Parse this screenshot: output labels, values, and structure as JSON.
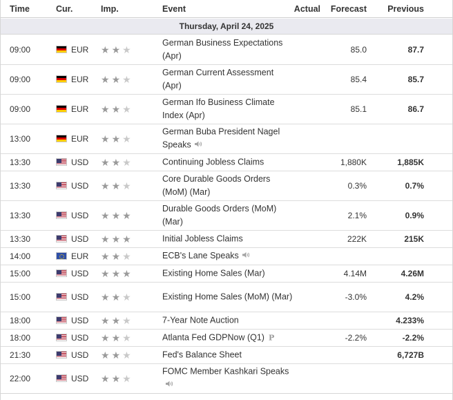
{
  "headers": {
    "time": "Time",
    "cur": "Cur.",
    "imp": "Imp.",
    "event": "Event",
    "actual": "Actual",
    "forecast": "Forecast",
    "previous": "Previous"
  },
  "date_label": "Thursday, April 24, 2025",
  "star_glyph": "★",
  "rows": [
    {
      "time": "09:00",
      "flag": "germany-flag-icon",
      "cur": "EUR",
      "importance": 2,
      "event": "German Business Expectations (Apr)",
      "actual": "",
      "forecast": "85.0",
      "previous": "87.7"
    },
    {
      "time": "09:00",
      "flag": "germany-flag-icon",
      "cur": "EUR",
      "importance": 2,
      "event": "German Current Assessment (Apr)",
      "actual": "",
      "forecast": "85.4",
      "previous": "85.7"
    },
    {
      "time": "09:00",
      "flag": "germany-flag-icon",
      "cur": "EUR",
      "importance": 2,
      "event": "German Ifo Business Climate Index (Apr)",
      "actual": "",
      "forecast": "85.1",
      "previous": "86.7"
    },
    {
      "time": "13:00",
      "flag": "germany-flag-icon",
      "cur": "EUR",
      "importance": 2,
      "event": "German Buba President Nagel Speaks",
      "event_icon": "speaker-icon",
      "actual": "",
      "forecast": "",
      "previous": ""
    },
    {
      "time": "13:30",
      "flag": "usa-flag-icon",
      "cur": "USD",
      "importance": 2,
      "event": "Continuing Jobless Claims",
      "actual": "",
      "forecast": "1,880K",
      "previous": "1,885K"
    },
    {
      "time": "13:30",
      "flag": "usa-flag-icon",
      "cur": "USD",
      "importance": 2,
      "event": "Core Durable Goods Orders (MoM) (Mar)",
      "actual": "",
      "forecast": "0.3%",
      "previous": "0.7%"
    },
    {
      "time": "13:30",
      "flag": "usa-flag-icon",
      "cur": "USD",
      "importance": 3,
      "event": "Durable Goods Orders (MoM) (Mar)",
      "actual": "",
      "forecast": "2.1%",
      "previous": "0.9%"
    },
    {
      "time": "13:30",
      "flag": "usa-flag-icon",
      "cur": "USD",
      "importance": 3,
      "event": "Initial Jobless Claims",
      "actual": "",
      "forecast": "222K",
      "previous": "215K"
    },
    {
      "time": "14:00",
      "flag": "eu-flag-icon",
      "cur": "EUR",
      "importance": 2,
      "event": "ECB's Lane Speaks",
      "event_icon": "speaker-icon",
      "actual": "",
      "forecast": "",
      "previous": ""
    },
    {
      "time": "15:00",
      "flag": "usa-flag-icon",
      "cur": "USD",
      "importance": 3,
      "event": "Existing Home Sales (Mar)",
      "actual": "",
      "forecast": "4.14M",
      "previous": "4.26M"
    },
    {
      "time": "15:00",
      "flag": "usa-flag-icon",
      "cur": "USD",
      "importance": 2,
      "event": "Existing Home Sales (MoM) (Mar)",
      "actual": "",
      "forecast": "-3.0%",
      "previous": "4.2%"
    },
    {
      "time": "18:00",
      "flag": "usa-flag-icon",
      "cur": "USD",
      "importance": 2,
      "event": "7-Year Note Auction",
      "actual": "",
      "forecast": "",
      "previous": "4.233%"
    },
    {
      "time": "18:00",
      "flag": "usa-flag-icon",
      "cur": "USD",
      "importance": 2,
      "event": "Atlanta Fed GDPNow (Q1)",
      "event_icon": "preliminary-icon",
      "event_icon_text": "P",
      "actual": "",
      "forecast": "-2.2%",
      "previous": "-2.2%"
    },
    {
      "time": "21:30",
      "flag": "usa-flag-icon",
      "cur": "USD",
      "importance": 2,
      "event": "Fed's Balance Sheet",
      "actual": "",
      "forecast": "",
      "previous": "6,727B"
    },
    {
      "time": "22:00",
      "flag": "usa-flag-icon",
      "cur": "USD",
      "importance": 2,
      "event": "FOMC Member Kashkari Speaks",
      "event_icon": "speaker-icon",
      "actual": "",
      "forecast": "",
      "previous": ""
    }
  ]
}
